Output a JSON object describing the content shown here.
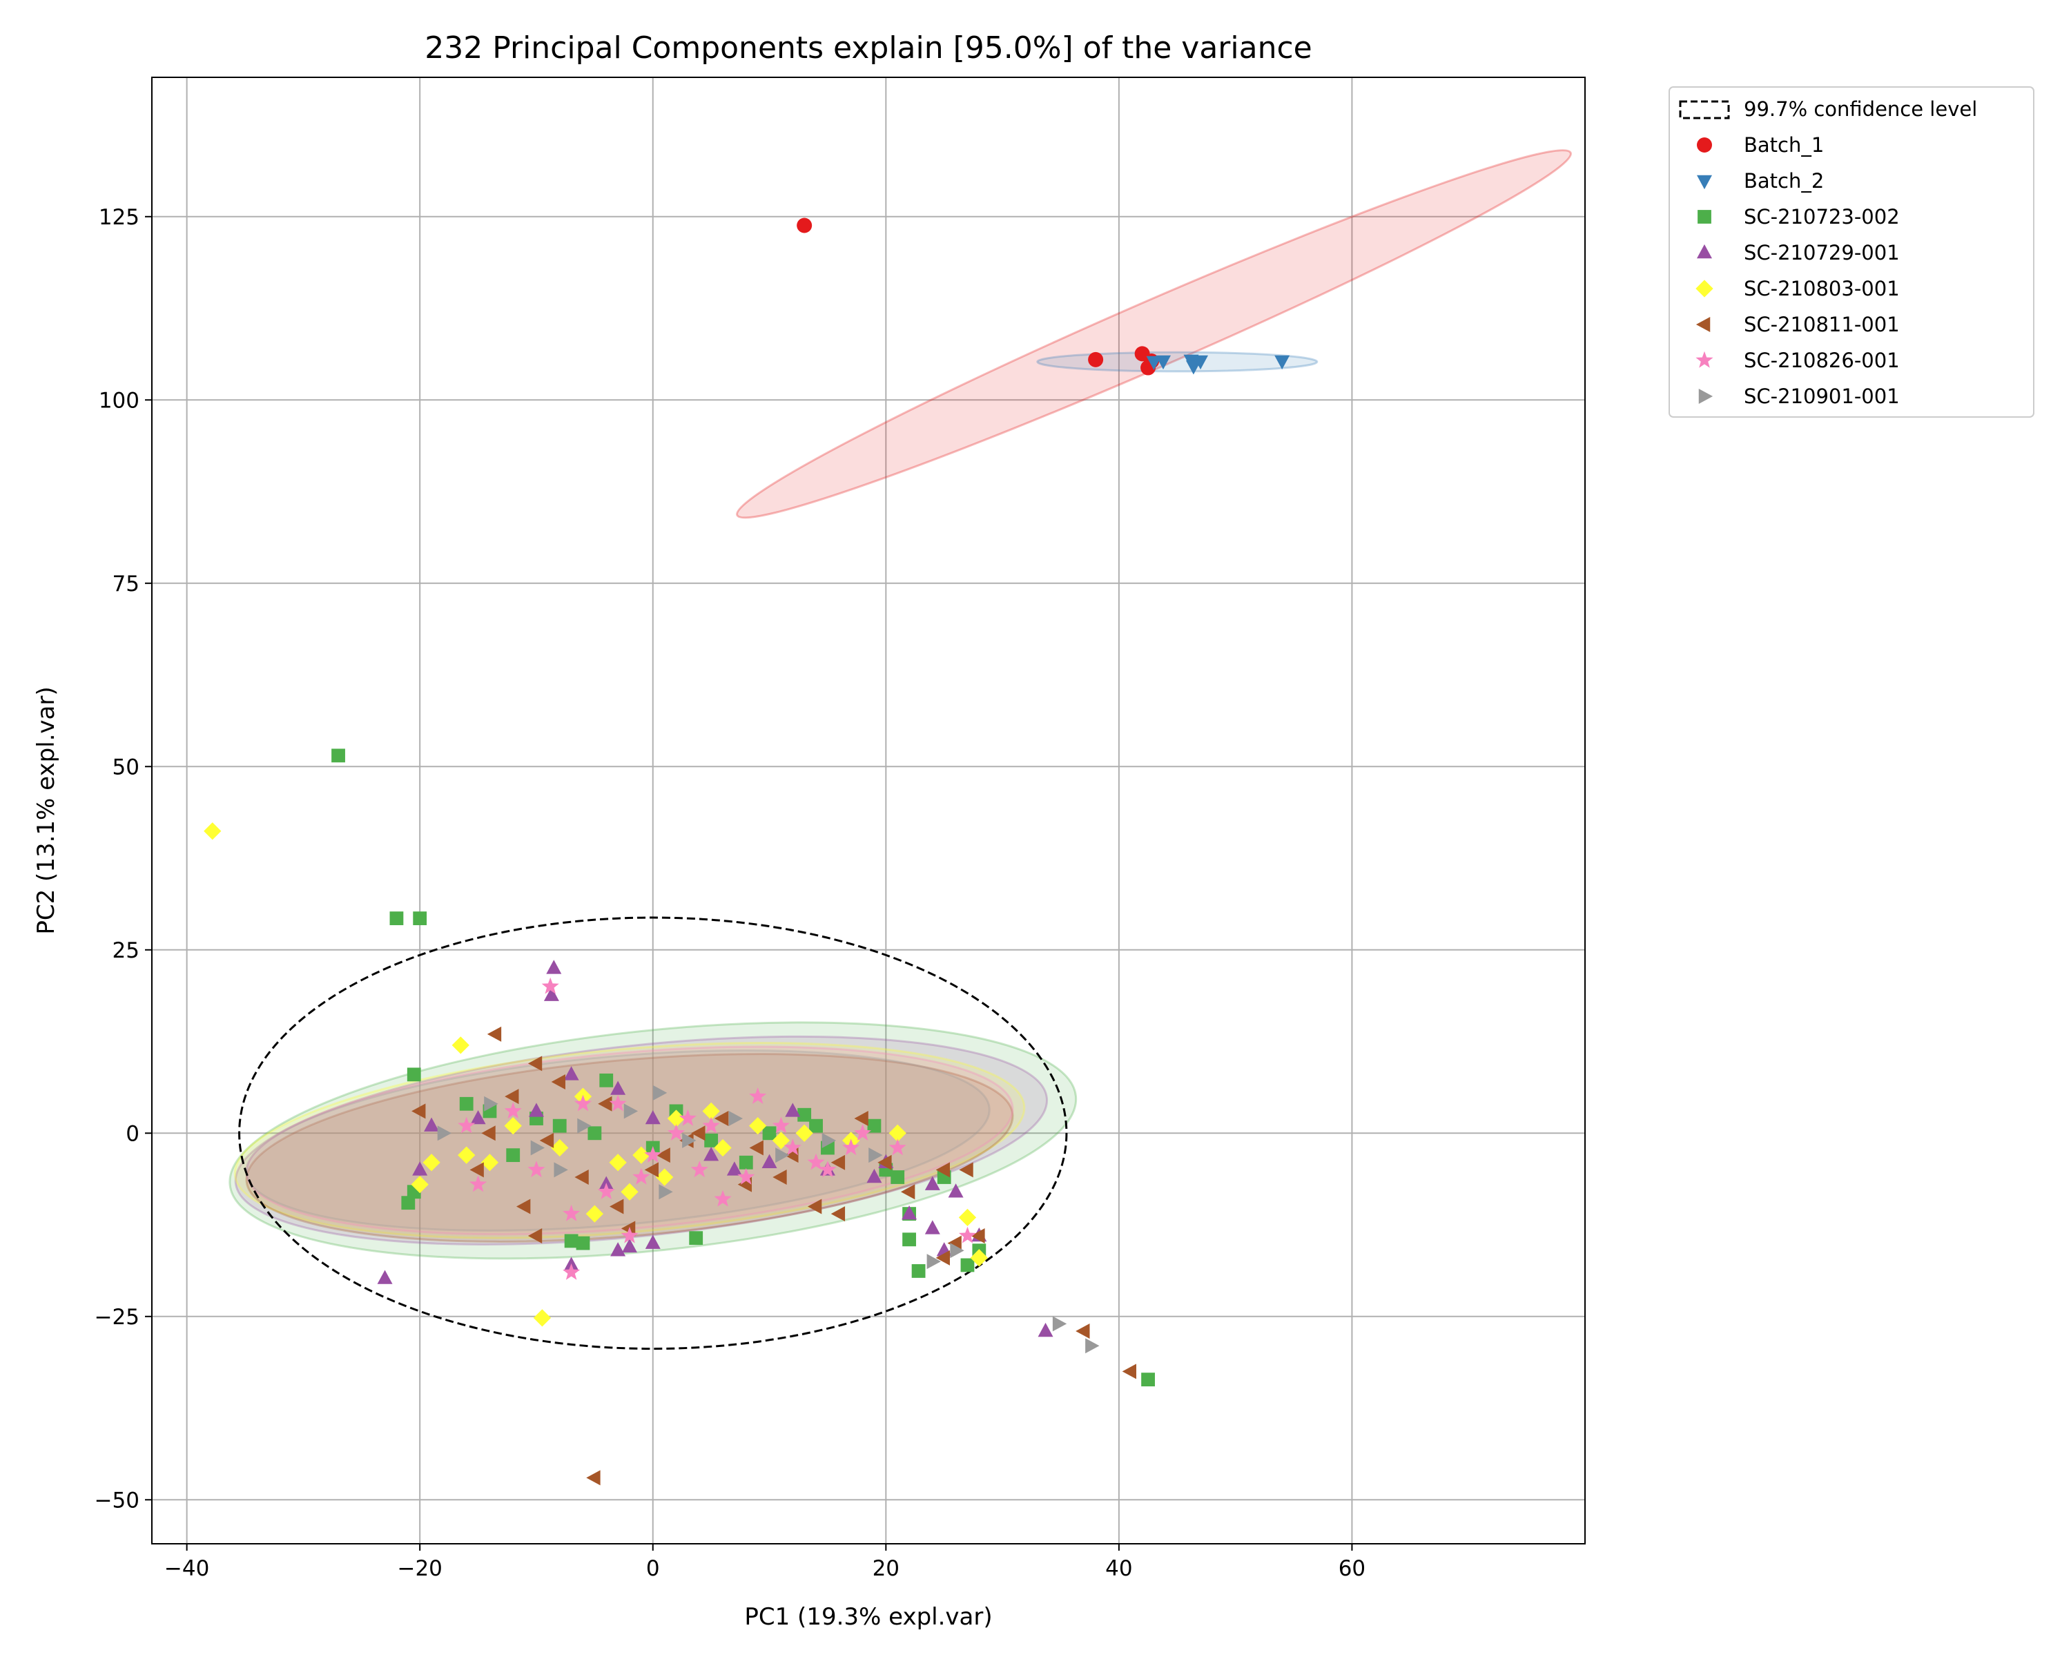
{
  "chart_data": {
    "type": "scatter",
    "title": "232 Principal Components explain [95.0%] of the variance",
    "xlabel": "PC1 (19.3% expl.var)",
    "ylabel": "PC2 (13.1% expl.var)",
    "xlim": [
      -43,
      80
    ],
    "ylim": [
      -56,
      144
    ],
    "x_ticks": [
      -40,
      -20,
      0,
      20,
      40,
      60
    ],
    "y_ticks": [
      -50,
      -25,
      0,
      25,
      50,
      75,
      100,
      125
    ],
    "x_tick_labels": [
      "−40",
      "−20",
      "0",
      "20",
      "40",
      "60"
    ],
    "y_tick_labels": [
      "−50",
      "−25",
      "0",
      "25",
      "50",
      "75",
      "100",
      "125"
    ],
    "grid": true,
    "legend_position": "outside-top-right",
    "confidence_ellipse": {
      "label": "99.7% confidence level",
      "center": [
        0,
        0
      ],
      "rx": 35.5,
      "ry": 29.4,
      "angle": 0
    },
    "series": [
      {
        "name": "Batch_1",
        "marker": "circle",
        "color": "#e41a1c",
        "ellipse": {
          "center": [
            43,
            109
          ],
          "rx": 39,
          "ry": 4.5,
          "angle": -23.5
        },
        "points": [
          [
            13,
            123.8
          ],
          [
            38,
            105.5
          ],
          [
            42,
            106.3
          ],
          [
            42.5,
            104.4
          ],
          [
            42.8,
            105.3
          ]
        ]
      },
      {
        "name": "Batch_2",
        "marker": "triangle-down",
        "color": "#377eb8",
        "ellipse": {
          "center": [
            45,
            105.2
          ],
          "rx": 12,
          "ry": 1.3,
          "angle": 0
        },
        "points": [
          [
            43,
            105.2
          ],
          [
            43.8,
            105.3
          ],
          [
            46.2,
            105.4
          ],
          [
            46.4,
            104.6
          ],
          [
            47,
            105.3
          ],
          [
            54,
            105.3
          ]
        ]
      },
      {
        "name": "SC-210723-002",
        "marker": "square",
        "color": "#4daf4a",
        "ellipse": {
          "center": [
            0,
            -1
          ],
          "rx": 36.5,
          "ry": 15,
          "angle": -6
        },
        "points": [
          [
            -27,
            51.5
          ],
          [
            -22,
            29.3
          ],
          [
            -20,
            29.3
          ],
          [
            -20.5,
            8
          ],
          [
            -21,
            -9.5
          ],
          [
            -20.5,
            -8
          ],
          [
            -7,
            -14.7
          ],
          [
            -6,
            -15
          ],
          [
            -4,
            7.2
          ],
          [
            3.7,
            -14.3
          ],
          [
            22.8,
            -18.8
          ],
          [
            27,
            -18
          ],
          [
            22,
            -14.5
          ],
          [
            42.5,
            -33.6
          ],
          [
            -14,
            3
          ],
          [
            -10,
            2
          ],
          [
            -5,
            0
          ],
          [
            0,
            -2
          ],
          [
            5,
            -1
          ],
          [
            10,
            0
          ],
          [
            15,
            -2
          ],
          [
            20,
            -5
          ],
          [
            25,
            -6
          ],
          [
            -12,
            -3
          ],
          [
            -8,
            1
          ],
          [
            2,
            3
          ],
          [
            8,
            -4
          ],
          [
            14,
            1
          ],
          [
            19,
            1
          ],
          [
            -16,
            4
          ],
          [
            13,
            2.5
          ],
          [
            21,
            -6
          ],
          [
            22,
            -11
          ],
          [
            28,
            -16
          ]
        ]
      },
      {
        "name": "SC-210729-001",
        "marker": "triangle-up",
        "color": "#984ea3",
        "ellipse": {
          "center": [
            -1,
            -1
          ],
          "rx": 35,
          "ry": 13,
          "angle": -6
        },
        "points": [
          [
            -8.5,
            22.5
          ],
          [
            -8.7,
            18.8
          ],
          [
            -23,
            -19.8
          ],
          [
            -7,
            -18
          ],
          [
            -3,
            -16
          ],
          [
            -2,
            -15.5
          ],
          [
            0,
            -15
          ],
          [
            33.7,
            -27
          ],
          [
            -20,
            -5
          ],
          [
            -19,
            1
          ],
          [
            -15,
            2
          ],
          [
            -10,
            3
          ],
          [
            -7,
            8
          ],
          [
            -3,
            6
          ],
          [
            0,
            2
          ],
          [
            5,
            -3
          ],
          [
            10,
            -4
          ],
          [
            15,
            -5
          ],
          [
            19,
            -6
          ],
          [
            24,
            -7
          ],
          [
            26,
            -8
          ],
          [
            24,
            -13
          ],
          [
            22,
            -11
          ],
          [
            25,
            -16
          ],
          [
            28,
            -14
          ],
          [
            -4,
            -7
          ],
          [
            7,
            -5
          ],
          [
            12,
            3
          ],
          [
            20,
            -4
          ]
        ]
      },
      {
        "name": "SC-210803-001",
        "marker": "diamond",
        "color": "#ffff33",
        "ellipse": {
          "center": [
            -2,
            -1
          ],
          "rx": 34,
          "ry": 12.5,
          "angle": -5
        },
        "points": [
          [
            -37.8,
            41.2
          ],
          [
            -16.5,
            12
          ],
          [
            -9.5,
            -25.2
          ],
          [
            -20,
            -7
          ],
          [
            -19,
            -4
          ],
          [
            -16,
            -3
          ],
          [
            -12,
            1
          ],
          [
            -8,
            -2
          ],
          [
            -5,
            -11
          ],
          [
            -3,
            -4
          ],
          [
            -1,
            -3
          ],
          [
            2,
            2
          ],
          [
            5,
            3
          ],
          [
            9,
            1
          ],
          [
            13,
            0
          ],
          [
            17,
            -1
          ],
          [
            21,
            0
          ],
          [
            27,
            -11.5
          ],
          [
            28,
            -17
          ],
          [
            -14,
            -4
          ],
          [
            -6,
            5
          ],
          [
            1,
            -6
          ],
          [
            6,
            -2
          ],
          [
            11,
            -1
          ],
          [
            -2,
            -8
          ]
        ]
      },
      {
        "name": "SC-210811-001",
        "marker": "triangle-left",
        "color": "#a65628",
        "ellipse": {
          "center": [
            -2,
            -2
          ],
          "rx": 33,
          "ry": 12,
          "angle": -5
        },
        "points": [
          [
            -13.5,
            13.5
          ],
          [
            -10,
            9.5
          ],
          [
            -11,
            -10
          ],
          [
            -10,
            -14
          ],
          [
            -5,
            -47
          ],
          [
            37,
            -27
          ],
          [
            41,
            -32.5
          ],
          [
            -20,
            3
          ],
          [
            -15,
            -5
          ],
          [
            -12,
            5
          ],
          [
            -8,
            7
          ],
          [
            -6,
            -6
          ],
          [
            -3,
            -10
          ],
          [
            0,
            -5
          ],
          [
            3,
            -1
          ],
          [
            6,
            2
          ],
          [
            9,
            -2
          ],
          [
            12,
            -3
          ],
          [
            16,
            -4
          ],
          [
            18,
            2
          ],
          [
            20,
            -4
          ],
          [
            22,
            -8
          ],
          [
            25,
            -5
          ],
          [
            27,
            -5
          ],
          [
            26,
            -15
          ],
          [
            25,
            -17
          ],
          [
            28,
            -14
          ],
          [
            14,
            -10
          ],
          [
            16,
            -11
          ],
          [
            -2,
            -13
          ],
          [
            -4,
            4
          ],
          [
            -9,
            -1
          ],
          [
            1,
            -3
          ],
          [
            8,
            -7
          ],
          [
            11,
            -6
          ],
          [
            4,
            0
          ],
          [
            -14,
            0
          ]
        ]
      },
      {
        "name": "SC-210826-001",
        "marker": "star",
        "color": "#f781bf",
        "ellipse": {
          "center": [
            -2,
            -1
          ],
          "rx": 33,
          "ry": 12,
          "angle": -5
        },
        "points": [
          [
            -8.8,
            20
          ],
          [
            -7,
            -19
          ],
          [
            -15,
            -7
          ],
          [
            -10,
            -5
          ],
          [
            -7,
            -11
          ],
          [
            -4,
            -8
          ],
          [
            -2,
            -14
          ],
          [
            0,
            -3
          ],
          [
            3,
            2
          ],
          [
            6,
            -9
          ],
          [
            9,
            5
          ],
          [
            12,
            -2
          ],
          [
            15,
            -5
          ],
          [
            18,
            0
          ],
          [
            21,
            -2
          ],
          [
            -16,
            1
          ],
          [
            -12,
            3
          ],
          [
            -6,
            4
          ],
          [
            -3,
            4
          ],
          [
            2,
            0
          ],
          [
            5,
            1
          ],
          [
            8,
            -6
          ],
          [
            11,
            1
          ],
          [
            14,
            -4
          ],
          [
            17,
            -2
          ],
          [
            27,
            -14
          ],
          [
            -1,
            -6
          ],
          [
            4,
            -5
          ]
        ]
      },
      {
        "name": "SC-210901-001",
        "marker": "triangle-right",
        "color": "#999999",
        "ellipse": {
          "center": [
            -3,
            -1
          ],
          "rx": 32,
          "ry": 11.5,
          "angle": -5
        },
        "points": [
          [
            34.8,
            -26
          ],
          [
            37.6,
            -29
          ],
          [
            24,
            -17.5
          ],
          [
            26,
            -16
          ],
          [
            0.5,
            5.5
          ],
          [
            -18,
            0
          ],
          [
            -14,
            4
          ],
          [
            -10,
            -2
          ],
          [
            -6,
            1
          ],
          [
            -2,
            3
          ],
          [
            3,
            -1
          ],
          [
            7,
            2
          ],
          [
            11,
            -3
          ],
          [
            15,
            -1
          ],
          [
            19,
            -3
          ],
          [
            -8,
            -5
          ],
          [
            1,
            -8
          ]
        ]
      }
    ]
  }
}
